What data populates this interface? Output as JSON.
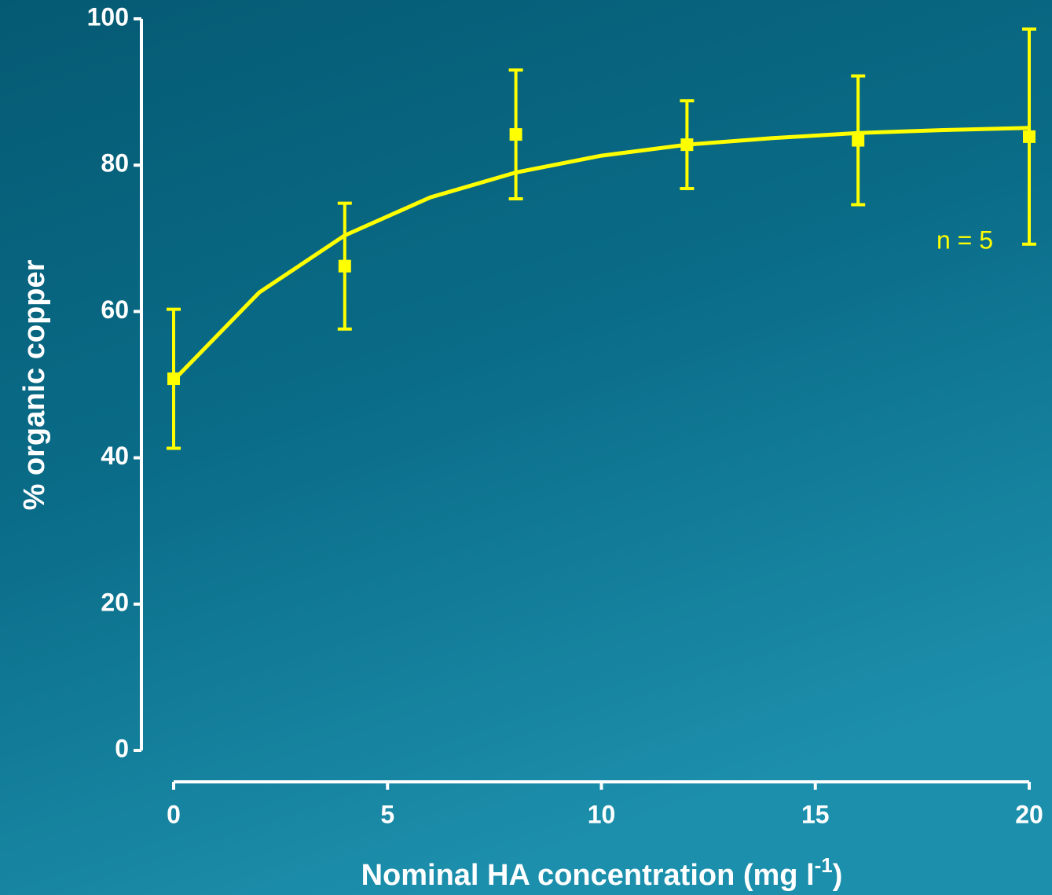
{
  "chart_data": {
    "type": "scatter",
    "x_label": {
      "text": "Nominal HA concentration (mg l",
      "superscript": "-1",
      "suffix": ")"
    },
    "y_label": "% organic copper",
    "annotation": "n = 5",
    "xlim": [
      0,
      20
    ],
    "xticks": [
      0,
      5,
      10,
      15,
      20
    ],
    "ylim": [
      0,
      100
    ],
    "yticks": [
      0,
      20,
      40,
      60,
      80,
      100
    ],
    "series": [
      {
        "kind": "points",
        "color": "#ffff00",
        "x": [
          0,
          4,
          8,
          12,
          16,
          20
        ],
        "values": [
          50.8,
          66.2,
          84.2,
          82.8,
          83.4,
          83.9
        ],
        "errors": [
          9.5,
          8.6,
          8.8,
          6.0,
          8.8,
          14.7
        ]
      },
      {
        "kind": "line",
        "color": "#ffff00",
        "x": [
          0,
          2,
          4,
          6,
          8,
          10,
          12,
          14,
          16,
          18,
          20
        ],
        "values": [
          50.6,
          62.6,
          70.4,
          75.6,
          79.0,
          81.3,
          82.8,
          83.7,
          84.4,
          84.8,
          85.1
        ]
      }
    ]
  }
}
